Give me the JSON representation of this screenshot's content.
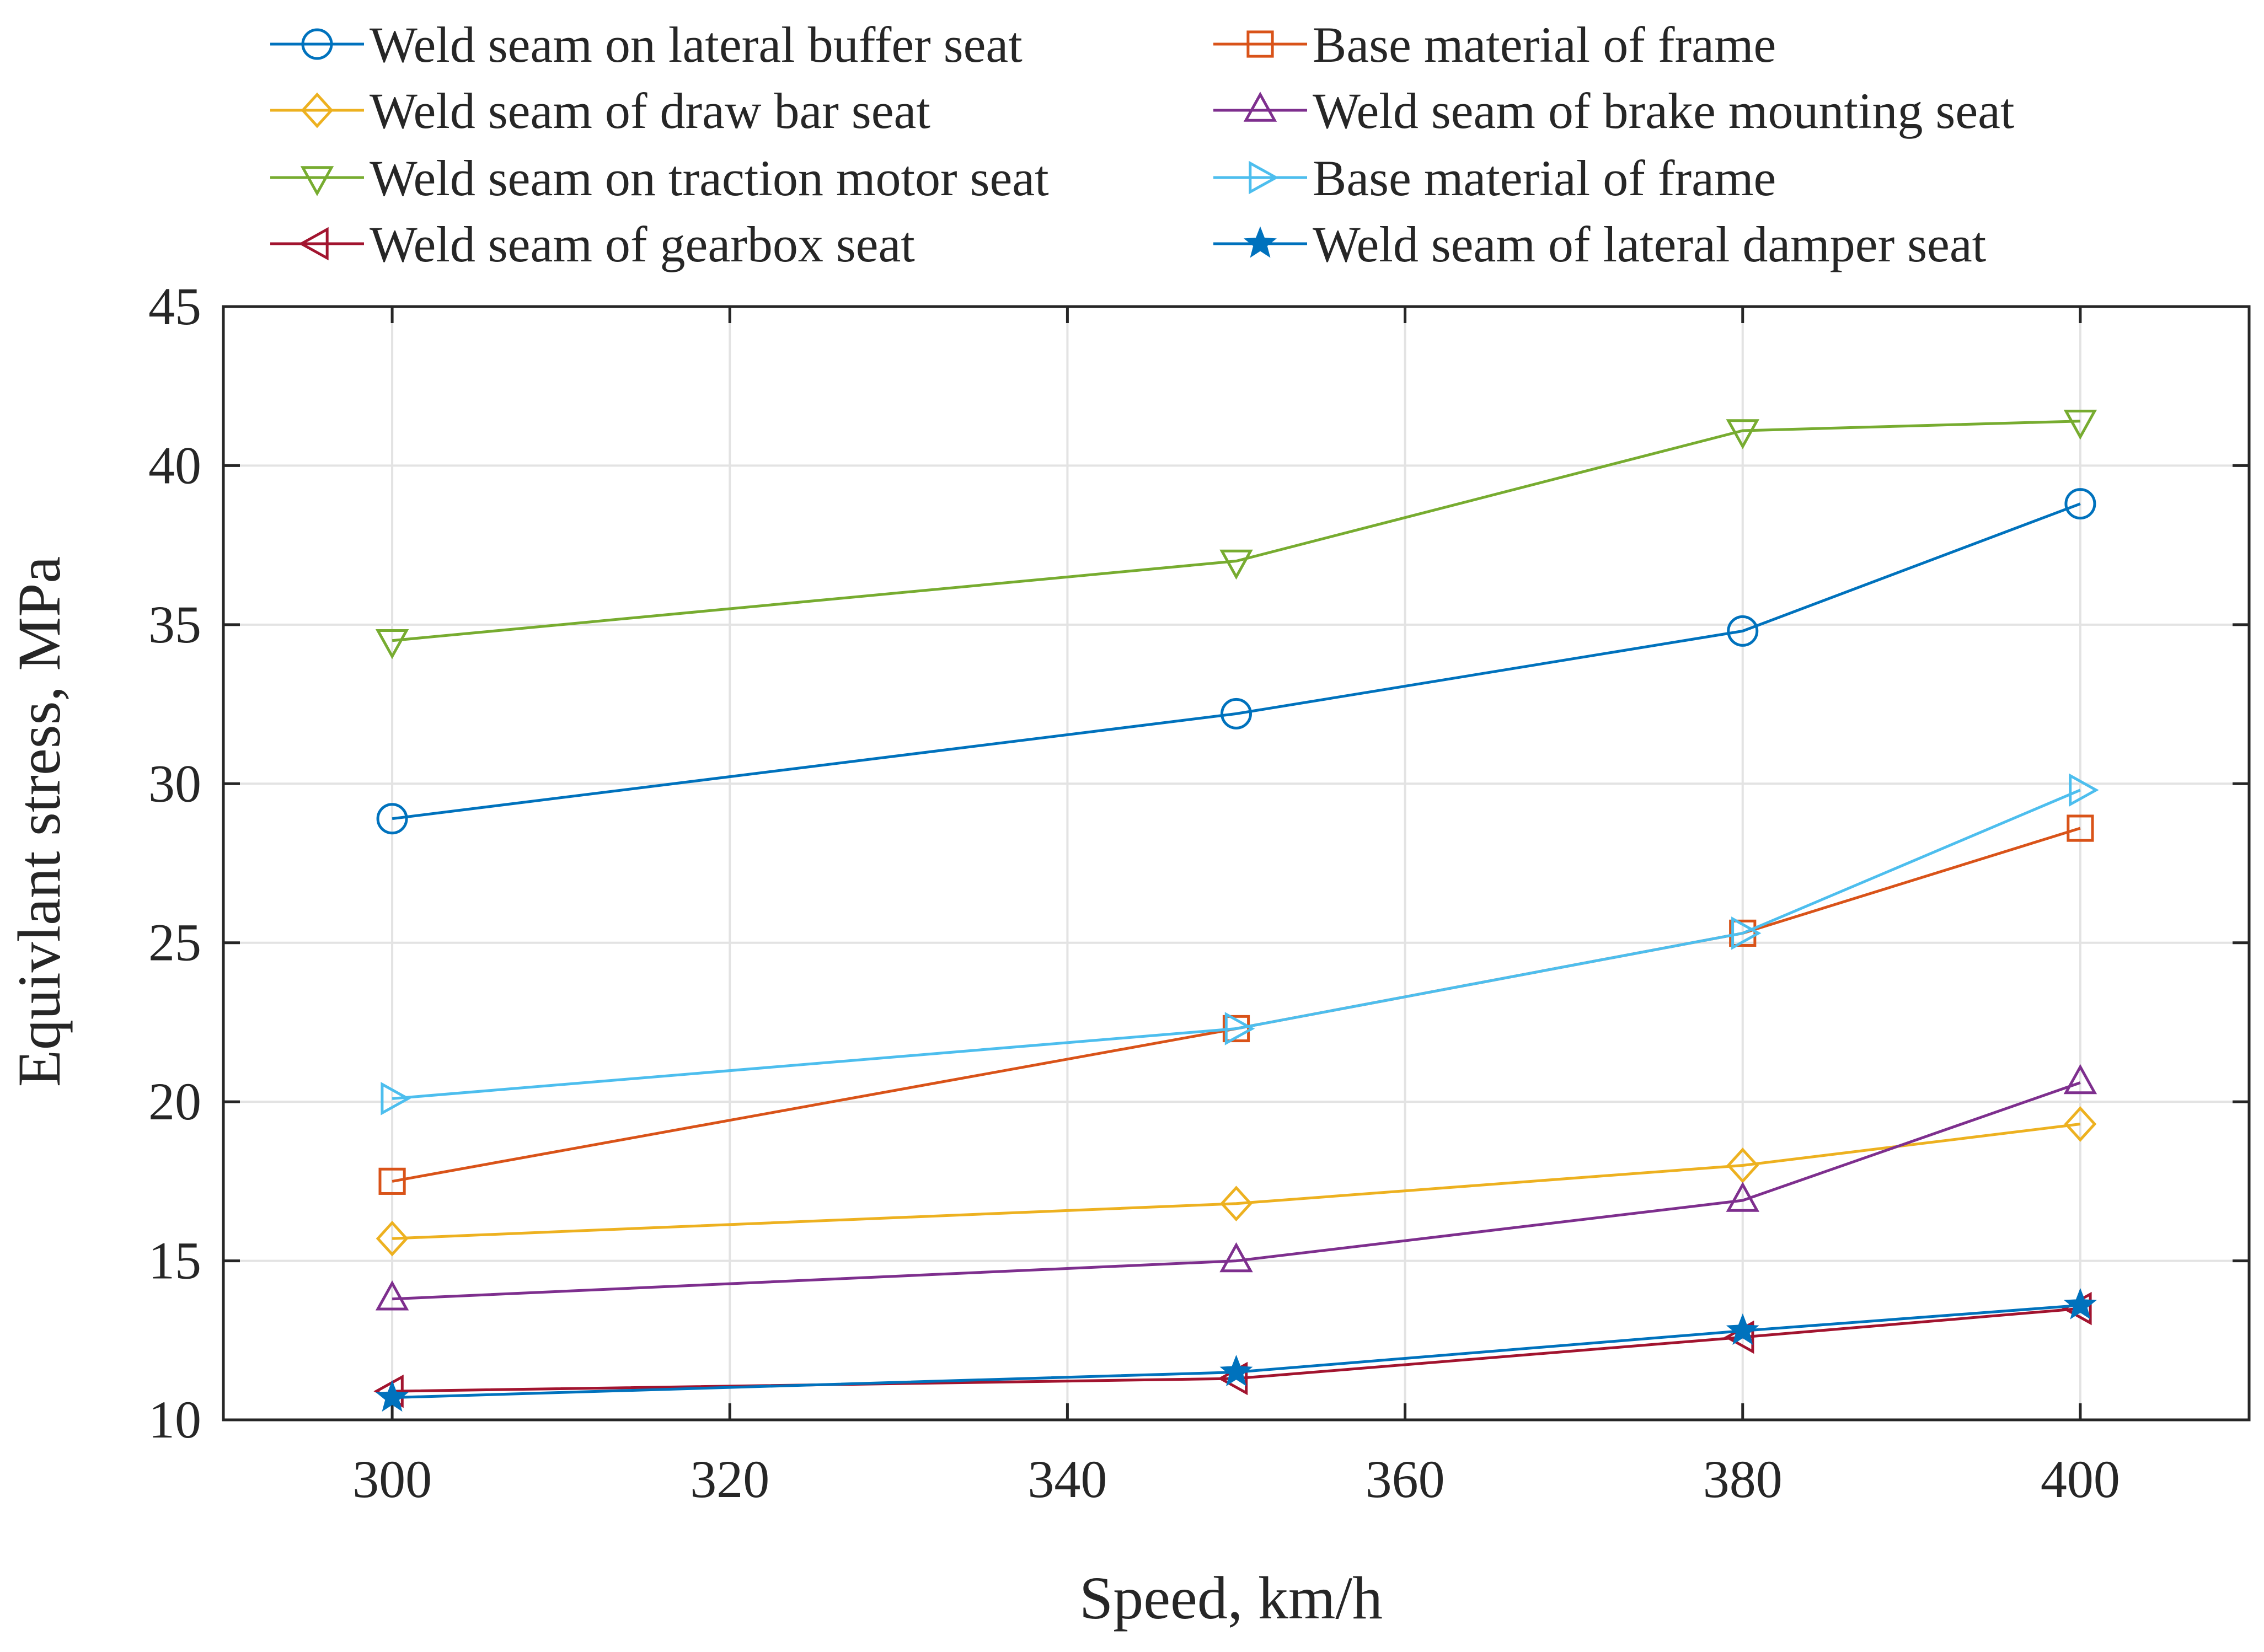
{
  "chart_data": {
    "type": "line",
    "title": "",
    "xlabel": "Speed, km/h",
    "ylabel": "Equivlant stress, MPa",
    "xlim": [
      290,
      410
    ],
    "ylim": [
      10,
      45
    ],
    "x": [
      300,
      350,
      380,
      400
    ],
    "xticks": [
      300,
      320,
      340,
      360,
      380,
      400
    ],
    "yticks": [
      10,
      15,
      20,
      25,
      30,
      35,
      40,
      45
    ],
    "grid": true,
    "legend_position": "top",
    "series": [
      {
        "name": "Weld seam on lateral buffer seat",
        "color": "#0072BD",
        "marker": "circle",
        "values": [
          28.9,
          32.2,
          34.8,
          38.8
        ]
      },
      {
        "name": "Base material of frame",
        "color": "#D95319",
        "marker": "square",
        "values": [
          17.5,
          22.3,
          25.3,
          28.6
        ]
      },
      {
        "name": "Weld seam of draw bar seat",
        "color": "#EDB120",
        "marker": "diamond",
        "values": [
          15.7,
          16.8,
          18.0,
          19.3
        ]
      },
      {
        "name": "Weld seam of brake mounting seat",
        "color": "#7E2F8E",
        "marker": "triangle-up",
        "values": [
          13.8,
          15.0,
          16.9,
          20.6
        ]
      },
      {
        "name": "Weld seam on traction motor seat",
        "color": "#77AC30",
        "marker": "triangle-down",
        "values": [
          34.5,
          37.0,
          41.1,
          41.4
        ]
      },
      {
        "name": "Base material of frame",
        "color": "#4DBEEE",
        "marker": "triangle-right",
        "values": [
          20.1,
          22.3,
          25.3,
          29.8
        ]
      },
      {
        "name": "Weld seam of gearbox seat",
        "color": "#A2142F",
        "marker": "triangle-left",
        "values": [
          10.9,
          11.3,
          12.6,
          13.5
        ]
      },
      {
        "name": "Weld seam of lateral damper seat",
        "color": "#0072BD",
        "marker": "star",
        "values": [
          10.7,
          11.5,
          12.8,
          13.6
        ]
      }
    ]
  }
}
